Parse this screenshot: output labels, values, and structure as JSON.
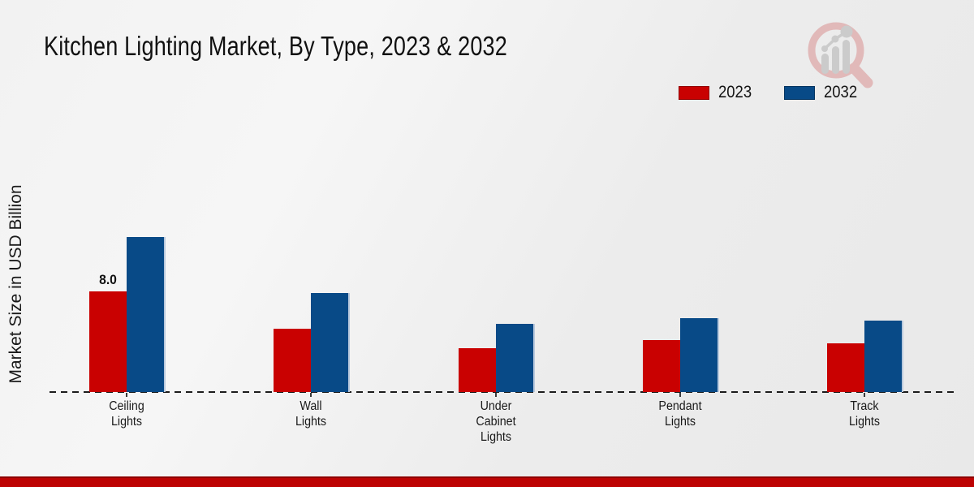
{
  "chart_data": {
    "type": "bar",
    "title": "Kitchen Lighting Market, By Type, 2023 & 2032",
    "ylabel": "Market Size in USD Billion",
    "xlabel": "",
    "categories": [
      "Ceiling\nLights",
      "Wall\nLights",
      "Under\nCabinet\nLights",
      "Pendant\nLights",
      "Track\nLights"
    ],
    "series": [
      {
        "name": "2023",
        "color": "#c90101",
        "values": [
          8.0,
          5.0,
          3.5,
          4.1,
          3.9
        ]
      },
      {
        "name": "2032",
        "color": "#084a87",
        "values": [
          12.3,
          7.9,
          5.4,
          5.9,
          5.7
        ]
      }
    ],
    "ylim": [
      0,
      13
    ],
    "grid": false,
    "legend_position": "top-right",
    "axis_style": "dashed-baseline-only",
    "value_label": {
      "series": "2023",
      "category_index": 0,
      "text": "8.0"
    }
  },
  "branding": {
    "logo_icon": "magnifier-bar-chart-icon",
    "logo_circle_color": "#e0b4b4",
    "logo_bars_color": "#c8c8c8",
    "footer_color": "#bd0303"
  }
}
